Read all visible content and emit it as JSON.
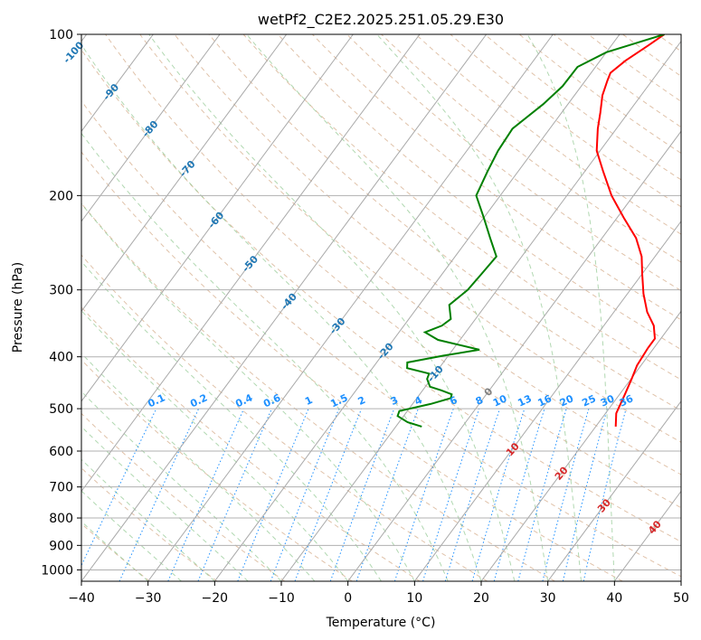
{
  "chart_data": {
    "type": "line",
    "title": "wetPf2_C2E2.2025.251.05.29.E30",
    "xlabel": "Temperature (°C)",
    "ylabel": "Pressure (hPa)",
    "xlim": [
      -40,
      50
    ],
    "ylim": [
      1050,
      100
    ],
    "y_scale": "log",
    "x_ticks": [
      -40,
      -30,
      -20,
      -10,
      0,
      10,
      20,
      30,
      40,
      50
    ],
    "x_tick_labels": [
      "−40",
      "−30",
      "−20",
      "−10",
      "0",
      "10",
      "20",
      "30",
      "40",
      "50"
    ],
    "y_ticks": [
      100,
      200,
      300,
      400,
      500,
      600,
      700,
      800,
      900,
      1000
    ],
    "y_tick_labels": [
      "100",
      "200",
      "300",
      "400",
      "500",
      "600",
      "700",
      "800",
      "900",
      "1000"
    ],
    "grid": true,
    "isotherm_labels": [
      "-100",
      "-90",
      "-80",
      "-70",
      "-60",
      "-50",
      "-40",
      "-30",
      "-20",
      "-10",
      "0",
      "10",
      "20",
      "30",
      "40"
    ],
    "mixing_ratio_labels": [
      "0.1",
      "0.2",
      "0.4",
      "0.6",
      "1",
      "1.5",
      "2",
      "3",
      "4",
      "6",
      "8",
      "10",
      "13",
      "16",
      "20",
      "25",
      "30",
      "36"
    ],
    "series": [
      {
        "role": "temperature",
        "color": "#ff0000",
        "points": [
          [
            23,
            540
          ],
          [
            21.6,
            510
          ],
          [
            20.8,
            470
          ],
          [
            20.1,
            440
          ],
          [
            19.4,
            415
          ],
          [
            19.1,
            385
          ],
          [
            19.1,
            370
          ],
          [
            17.5,
            350
          ],
          [
            15,
            330
          ],
          [
            12.4,
            305
          ],
          [
            10,
            280
          ],
          [
            8,
            260
          ],
          [
            5.1,
            240
          ],
          [
            1,
            220
          ],
          [
            -3.3,
            200
          ],
          [
            -7.3,
            180
          ],
          [
            -10.5,
            165
          ],
          [
            -12.8,
            150
          ],
          [
            -14.2,
            140
          ],
          [
            -15.8,
            130
          ],
          [
            -16.7,
            122
          ],
          [
            -17.1,
            118
          ],
          [
            -16.2,
            112
          ],
          [
            -14.5,
            105
          ],
          [
            -13.3,
            100
          ]
        ]
      },
      {
        "role": "dewpoint",
        "color": "#008000",
        "points": [
          [
            -6.1,
            540
          ],
          [
            -8.7,
            530
          ],
          [
            -10.9,
            516
          ],
          [
            -11.2,
            505
          ],
          [
            -7.3,
            490
          ],
          [
            -4.9,
            478
          ],
          [
            -5.2,
            470
          ],
          [
            -7.2,
            462
          ],
          [
            -9.3,
            455
          ],
          [
            -10.6,
            440
          ],
          [
            -10.9,
            430
          ],
          [
            -14.8,
            420
          ],
          [
            -15.4,
            410
          ],
          [
            -10.7,
            398
          ],
          [
            -6,
            388
          ],
          [
            -13.3,
            372
          ],
          [
            -16.1,
            360
          ],
          [
            -14.3,
            350
          ],
          [
            -13.7,
            340
          ],
          [
            -15.5,
            320
          ],
          [
            -14.4,
            300
          ],
          [
            -14.1,
            280
          ],
          [
            -13.8,
            260
          ],
          [
            -16.8,
            240
          ],
          [
            -20,
            220
          ],
          [
            -23.6,
            200
          ],
          [
            -24.6,
            180
          ],
          [
            -25.3,
            165
          ],
          [
            -25.6,
            150
          ],
          [
            -23.7,
            135
          ],
          [
            -22.8,
            125
          ],
          [
            -22.7,
            115
          ],
          [
            -20,
            108
          ],
          [
            -16.7,
            104
          ],
          [
            -13.3,
            100
          ]
        ]
      }
    ]
  }
}
